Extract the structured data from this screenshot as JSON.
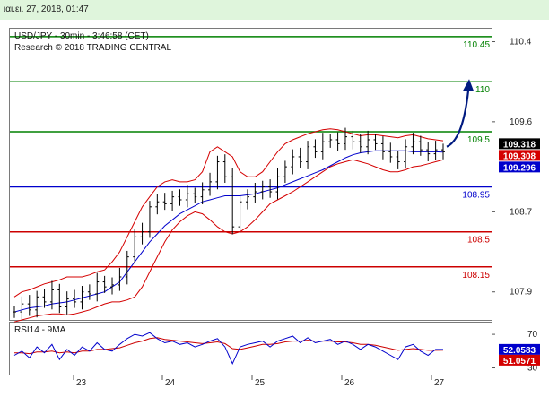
{
  "topbar": {
    "date_label": "ιαι.ει. 27, 2018, 01:47"
  },
  "colors": {
    "price": "#000000",
    "bollinger": "#d40000",
    "ma": "#0000cc",
    "resistance": "#008000",
    "pivot": "#0000cc",
    "support": "#cc0000",
    "forecast_arrow": "#001a80",
    "rsi": "#0000cc",
    "rsi_ma": "#cc0000"
  },
  "chart_data": [
    {
      "type": "line",
      "title": "USD/JPY - 30min - 3:46:58 (CET)",
      "subtitle": "Research © 2018 TRADING CENTRAL",
      "xlabel": "",
      "ylabel": "",
      "x_ticks": [
        "23",
        "24",
        "25",
        "26",
        "27"
      ],
      "ylim": [
        107.62,
        110.53
      ],
      "y_ticks": [
        107.9,
        108.7,
        109.6,
        110.4
      ],
      "y_tick_labels": [
        "107.9",
        "108.7",
        "109.6",
        "110.4"
      ],
      "levels": [
        {
          "label": "110.45",
          "value": 110.45,
          "kind": "resistance"
        },
        {
          "label": "110",
          "value": 110.0,
          "kind": "resistance"
        },
        {
          "label": "109.5",
          "value": 109.5,
          "kind": "resistance"
        },
        {
          "label": "108.95",
          "value": 108.95,
          "kind": "pivot"
        },
        {
          "label": "108.5",
          "value": 108.5,
          "kind": "support"
        },
        {
          "label": "108.15",
          "value": 108.15,
          "kind": "support"
        }
      ],
      "price_badges": [
        {
          "label": "109.318",
          "value": 109.318,
          "bg": "#000000",
          "fg": "#ffffff"
        },
        {
          "label": "109.308",
          "value": 109.308,
          "bg": "#d40000",
          "fg": "#ffffff"
        },
        {
          "label": "109.296",
          "value": 109.296,
          "bg": "#0000cc",
          "fg": "#ffffff"
        }
      ],
      "series": [
        {
          "kind": "price",
          "values": [
            107.7,
            107.78,
            107.72,
            107.85,
            107.8,
            107.92,
            107.75,
            107.83,
            107.8,
            107.9,
            107.88,
            108.0,
            107.95,
            107.97,
            108.05,
            108.25,
            108.45,
            108.5,
            108.75,
            108.8,
            108.78,
            108.85,
            108.82,
            108.88,
            108.85,
            108.92,
            109.0,
            109.2,
            109.05,
            108.55,
            108.8,
            108.85,
            108.9,
            108.95,
            108.9,
            109.05,
            109.15,
            109.25,
            109.2,
            109.35,
            109.3,
            109.4,
            109.42,
            109.38,
            109.45,
            109.4,
            109.35,
            109.42,
            109.38,
            109.3,
            109.25,
            109.2,
            109.35,
            109.4,
            109.32,
            109.28,
            109.32,
            109.3
          ]
        },
        {
          "kind": "ma",
          "values": [
            107.7,
            107.72,
            107.74,
            107.75,
            107.76,
            107.78,
            107.79,
            107.8,
            107.82,
            107.84,
            107.86,
            107.88,
            107.9,
            107.95,
            108.0,
            108.1,
            108.2,
            108.3,
            108.4,
            108.48,
            108.56,
            108.62,
            108.68,
            108.72,
            108.76,
            108.8,
            108.82,
            108.84,
            108.86,
            108.86,
            108.86,
            108.87,
            108.88,
            108.9,
            108.92,
            108.94,
            108.97,
            109.0,
            109.03,
            109.06,
            109.09,
            109.12,
            109.16,
            109.2,
            109.24,
            109.27,
            109.29,
            109.3,
            109.31,
            109.31,
            109.31,
            109.31,
            109.31,
            109.3,
            109.3,
            109.3,
            109.3,
            109.296
          ]
        },
        {
          "kind": "bollinger_upper",
          "values": [
            107.85,
            107.9,
            107.92,
            107.95,
            107.98,
            108.0,
            108.02,
            108.05,
            108.05,
            108.05,
            108.07,
            108.1,
            108.12,
            108.2,
            108.3,
            108.45,
            108.6,
            108.75,
            108.85,
            108.95,
            109.0,
            109.02,
            109.0,
            109.0,
            109.02,
            109.1,
            109.3,
            109.35,
            109.3,
            109.25,
            109.1,
            109.05,
            109.05,
            109.1,
            109.2,
            109.3,
            109.38,
            109.42,
            109.45,
            109.48,
            109.5,
            109.52,
            109.53,
            109.52,
            109.5,
            109.48,
            109.46,
            109.47,
            109.47,
            109.46,
            109.45,
            109.44,
            109.46,
            109.47,
            109.45,
            109.43,
            109.42,
            109.41
          ]
        },
        {
          "kind": "bollinger_lower",
          "values": [
            107.6,
            107.62,
            107.64,
            107.66,
            107.67,
            107.68,
            107.68,
            107.67,
            107.68,
            107.7,
            107.72,
            107.75,
            107.78,
            107.8,
            107.8,
            107.82,
            107.85,
            107.95,
            108.1,
            108.25,
            108.4,
            108.52,
            108.6,
            108.66,
            108.7,
            108.68,
            108.62,
            108.55,
            108.5,
            108.48,
            108.5,
            108.55,
            108.62,
            108.7,
            108.78,
            108.82,
            108.86,
            108.9,
            108.95,
            109.0,
            109.05,
            109.1,
            109.15,
            109.18,
            109.2,
            109.22,
            109.2,
            109.18,
            109.15,
            109.12,
            109.1,
            109.1,
            109.12,
            109.15,
            109.16,
            109.18,
            109.2,
            109.22
          ]
        }
      ],
      "forecast_arrow": {
        "x_from_index": 57,
        "y_from": 109.35,
        "y_to": 110.0
      }
    },
    {
      "type": "line",
      "title": "RSI14 - 9MA",
      "ylim": [
        22,
        84
      ],
      "y_ticks": [
        70,
        30
      ],
      "y_tick_labels": [
        "70",
        "30"
      ],
      "badges": [
        {
          "label": "52.0583",
          "value": 52.0583,
          "bg": "#0000cc",
          "fg": "#ffffff"
        },
        {
          "label": "51.0571",
          "value": 51.0571,
          "bg": "#d40000",
          "fg": "#ffffff"
        }
      ],
      "series": [
        {
          "kind": "rsi",
          "values": [
            45,
            50,
            42,
            55,
            48,
            58,
            40,
            52,
            45,
            55,
            50,
            60,
            52,
            50,
            58,
            65,
            70,
            68,
            72,
            65,
            60,
            62,
            58,
            60,
            55,
            58,
            62,
            65,
            55,
            35,
            55,
            58,
            60,
            62,
            55,
            62,
            65,
            68,
            60,
            66,
            60,
            62,
            64,
            58,
            62,
            58,
            52,
            58,
            55,
            50,
            45,
            40,
            55,
            58,
            50,
            45,
            52,
            52.06
          ]
        },
        {
          "kind": "rsi_ma",
          "values": [
            48,
            48,
            47,
            49,
            49,
            50,
            48,
            49,
            48,
            50,
            50,
            52,
            52,
            53,
            54,
            57,
            60,
            62,
            65,
            66,
            64,
            63,
            62,
            61,
            60,
            59,
            60,
            61,
            59,
            53,
            52,
            54,
            56,
            58,
            58,
            59,
            61,
            62,
            62,
            63,
            62,
            62,
            62,
            61,
            61,
            60,
            58,
            58,
            57,
            55,
            53,
            51,
            52,
            53,
            52,
            51,
            51,
            51.06
          ]
        }
      ]
    }
  ]
}
